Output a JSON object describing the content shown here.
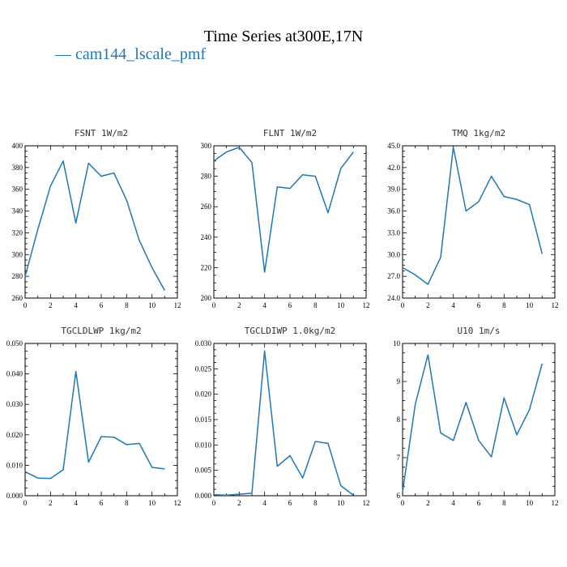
{
  "title": "Time Series at300E,17N",
  "legend_label": "— cam144_lscale_pmf",
  "colors": {
    "series": "#1f77b4",
    "axis": "#000000"
  },
  "chart_data": [
    {
      "type": "line",
      "title": "FSNT   1W/m2",
      "series_name": "cam144_lscale_pmf",
      "x": [
        0,
        1,
        2,
        3,
        4,
        5,
        6,
        7,
        8,
        9,
        10,
        11
      ],
      "values": [
        280,
        323,
        363,
        386,
        329,
        384,
        372,
        375,
        350,
        313,
        288,
        267
      ],
      "xlim": [
        0,
        12
      ],
      "ylim": [
        260,
        400
      ],
      "xticks": [
        0,
        2,
        4,
        6,
        8,
        10,
        12
      ],
      "xtick_labels": [
        "0",
        "2",
        "4",
        "6",
        "8",
        "10",
        "12"
      ],
      "yticks": [
        260,
        280,
        300,
        320,
        340,
        360,
        380,
        400
      ],
      "ytick_labels": [
        "260",
        "280",
        "300",
        "320",
        "340",
        "360",
        "380",
        "400"
      ]
    },
    {
      "type": "line",
      "title": "FLNT   1W/m2",
      "series_name": "cam144_lscale_pmf",
      "x": [
        0,
        1,
        2,
        3,
        4,
        5,
        6,
        7,
        8,
        9,
        10,
        11
      ],
      "values": [
        290,
        296,
        299,
        289,
        217,
        273,
        272,
        281,
        280,
        256,
        285,
        296
      ],
      "xlim": [
        0,
        12
      ],
      "ylim": [
        200,
        300
      ],
      "xticks": [
        0,
        2,
        4,
        6,
        8,
        10,
        12
      ],
      "xtick_labels": [
        "0",
        "2",
        "4",
        "6",
        "8",
        "10",
        "12"
      ],
      "yticks": [
        200,
        220,
        240,
        260,
        280,
        300
      ],
      "ytick_labels": [
        "200",
        "220",
        "240",
        "260",
        "280",
        "300"
      ]
    },
    {
      "type": "line",
      "title": "TMQ   1kg/m2",
      "series_name": "cam144_lscale_pmf",
      "x": [
        0,
        1,
        2,
        3,
        4,
        5,
        6,
        7,
        8,
        9,
        10,
        11
      ],
      "values": [
        28.2,
        27.2,
        25.9,
        29.6,
        44.8,
        36.0,
        37.3,
        40.8,
        38.0,
        37.6,
        36.9,
        30.1
      ],
      "xlim": [
        0,
        12
      ],
      "ylim": [
        24.0,
        45.0
      ],
      "xticks": [
        0,
        2,
        4,
        6,
        8,
        10,
        12
      ],
      "xtick_labels": [
        "0",
        "2",
        "4",
        "6",
        "8",
        "10",
        "12"
      ],
      "yticks": [
        24,
        27,
        30,
        33,
        36,
        39,
        42,
        45
      ],
      "ytick_labels": [
        "24.0",
        "27.0",
        "30.0",
        "33.0",
        "36.0",
        "39.0",
        "42.0",
        "45.0"
      ]
    },
    {
      "type": "line",
      "title": "TGCLDLWP   1kg/m2",
      "series_name": "cam144_lscale_pmf",
      "x": [
        0,
        1,
        2,
        3,
        4,
        5,
        6,
        7,
        8,
        9,
        10,
        11
      ],
      "values": [
        0.0079,
        0.0058,
        0.0057,
        0.0085,
        0.0408,
        0.011,
        0.0194,
        0.0192,
        0.0168,
        0.0172,
        0.0093,
        0.0088
      ],
      "xlim": [
        0,
        12
      ],
      "ylim": [
        0,
        0.05
      ],
      "xticks": [
        0,
        2,
        4,
        6,
        8,
        10,
        12
      ],
      "xtick_labels": [
        "0",
        "2",
        "4",
        "6",
        "8",
        "10",
        "12"
      ],
      "yticks": [
        0,
        0.01,
        0.02,
        0.03,
        0.04,
        0.05
      ],
      "ytick_labels": [
        "0.000",
        "0.010",
        "0.020",
        "0.030",
        "0.040",
        "0.050"
      ]
    },
    {
      "type": "line",
      "title": "TGCLDIWP   1.0kg/m2",
      "series_name": "cam144_lscale_pmf",
      "x": [
        0,
        1,
        2,
        3,
        4,
        5,
        6,
        7,
        8,
        9,
        10,
        11
      ],
      "values": [
        0.0002,
        0.0001,
        0.0003,
        0.0005,
        0.0285,
        0.0058,
        0.0079,
        0.0035,
        0.0107,
        0.0103,
        0.002,
        0.0001
      ],
      "xlim": [
        0,
        12
      ],
      "ylim": [
        0,
        0.03
      ],
      "xticks": [
        0,
        2,
        4,
        6,
        8,
        10,
        12
      ],
      "xtick_labels": [
        "0",
        "2",
        "4",
        "6",
        "8",
        "10",
        "12"
      ],
      "yticks": [
        0,
        0.005,
        0.01,
        0.015,
        0.02,
        0.025,
        0.03
      ],
      "ytick_labels": [
        "0.000",
        "0.005",
        "0.010",
        "0.015",
        "0.020",
        "0.025",
        "0.030"
      ]
    },
    {
      "type": "line",
      "title": "U10   1m/s",
      "series_name": "cam144_lscale_pmf",
      "x": [
        0,
        1,
        2,
        3,
        4,
        5,
        6,
        7,
        8,
        9,
        10,
        11
      ],
      "values": [
        6.1,
        8.4,
        9.7,
        7.65,
        7.45,
        8.45,
        7.45,
        7.02,
        8.57,
        7.6,
        8.26,
        9.47
      ],
      "xlim": [
        0,
        12
      ],
      "ylim": [
        6,
        10
      ],
      "xticks": [
        0,
        2,
        4,
        6,
        8,
        10,
        12
      ],
      "xtick_labels": [
        "0",
        "2",
        "4",
        "6",
        "8",
        "10",
        "12"
      ],
      "yticks": [
        6,
        7,
        8,
        9,
        10
      ],
      "ytick_labels": [
        "6",
        "7",
        "8",
        "9",
        "10"
      ]
    }
  ]
}
